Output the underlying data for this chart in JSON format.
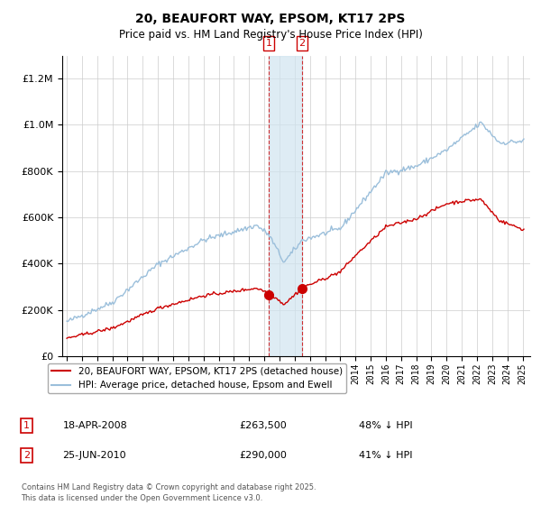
{
  "title": "20, BEAUFORT WAY, EPSOM, KT17 2PS",
  "subtitle": "Price paid vs. HM Land Registry's House Price Index (HPI)",
  "hpi_color": "#9bbfdb",
  "price_color": "#cc0000",
  "transaction1_date": 2008.29,
  "transaction1_price": 263500,
  "transaction2_date": 2010.48,
  "transaction2_price": 290000,
  "legend_entry1": "20, BEAUFORT WAY, EPSOM, KT17 2PS (detached house)",
  "legend_entry2": "HPI: Average price, detached house, Epsom and Ewell",
  "table_row1_num": "1",
  "table_row1_date": "18-APR-2008",
  "table_row1_price": "£263,500",
  "table_row1_hpi": "48% ↓ HPI",
  "table_row2_num": "2",
  "table_row2_date": "25-JUN-2010",
  "table_row2_price": "£290,000",
  "table_row2_hpi": "41% ↓ HPI",
  "footer": "Contains HM Land Registry data © Crown copyright and database right 2025.\nThis data is licensed under the Open Government Licence v3.0.",
  "ylim_max": 1300000,
  "xmin": 1994.7,
  "xmax": 2025.5
}
